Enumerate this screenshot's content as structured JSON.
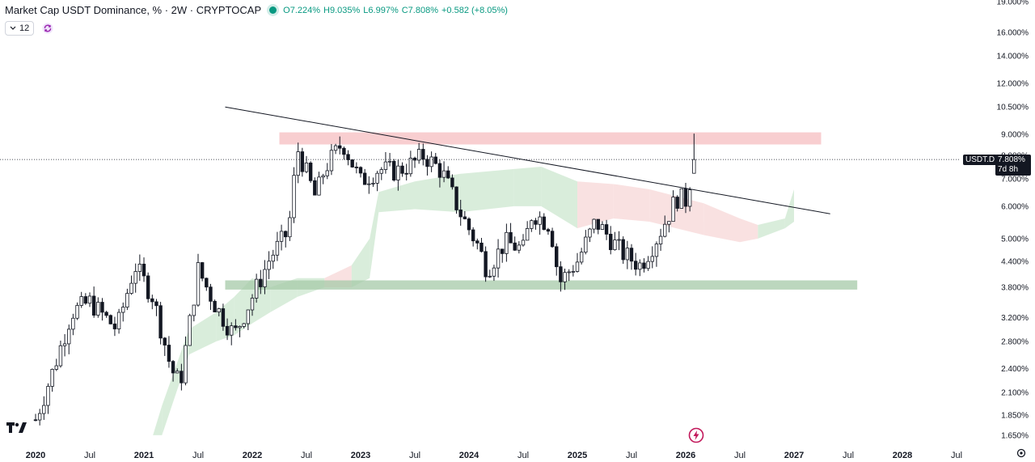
{
  "header": {
    "title": "Market Cap USDT Dominance, % · 2W · CRYPTOCAP",
    "open": "O7.224%",
    "high": "H9.035%",
    "low": "L6.997%",
    "close": "C7.808%",
    "change": "+0.582 (+8.05%)",
    "interval_value": "12"
  },
  "badge": {
    "symbol": "USDT.D",
    "price": "7.808%",
    "countdown": "7d 8h"
  },
  "colors": {
    "up": "#089981",
    "down": "#131722",
    "resistance_zone": "#f7c5c8",
    "support_zone": "#a5c9a8",
    "cloud_bull": "#cfe9d2",
    "cloud_bear": "#f7d9d9"
  },
  "icons": {
    "interval": "chevron-down-icon",
    "sync": "sync-icon",
    "logo": "tradingview-logo-icon",
    "event": "lightning-icon",
    "settings": "gear-icon"
  },
  "chart_data": {
    "type": "candlestick",
    "title": "Market Cap USDT Dominance, % · 2W · CRYPTOCAP",
    "y_scale": "log",
    "y_ticks": [
      "19.000%",
      "16.000%",
      "14.000%",
      "12.000%",
      "10.500%",
      "9.000%",
      "8.000%",
      "7.000%",
      "6.000%",
      "5.000%",
      "4.400%",
      "3.800%",
      "3.200%",
      "2.800%",
      "2.400%",
      "2.100%",
      "1.850%",
      "1.650%"
    ],
    "y_tick_values": [
      19,
      16,
      14,
      12,
      10.5,
      9,
      8,
      7,
      6,
      5,
      4.4,
      3.8,
      3.2,
      2.8,
      2.4,
      2.1,
      1.85,
      1.65
    ],
    "x_ticks": [
      "2020",
      "Jul",
      "2021",
      "Jul",
      "2022",
      "Jul",
      "2023",
      "Jul",
      "2024",
      "Jul",
      "2025",
      "Jul",
      "2026",
      "Jul",
      "2027",
      "Jul",
      "2028",
      "Jul"
    ],
    "x_bold": [
      "2020",
      "2021",
      "2022",
      "2023",
      "2024",
      "2025",
      "2026",
      "2027",
      "2028"
    ],
    "last_price": 7.808,
    "zones": [
      {
        "name": "resistance",
        "from": "2022-04",
        "to": "2027-04",
        "low": 8.5,
        "high": 9.1
      },
      {
        "name": "support",
        "from": "2021-10",
        "to": "2027-08",
        "low": 3.75,
        "high": 3.95
      }
    ],
    "trendline": {
      "from": {
        "date": "2021-10",
        "value": 10.5
      },
      "to": {
        "date": "2027-05",
        "value": 5.75
      }
    },
    "anchors": [
      {
        "date": "2020-01",
        "value": 1.8
      },
      {
        "date": "2020-03",
        "value": 2.4
      },
      {
        "date": "2020-05",
        "value": 3.3
      },
      {
        "date": "2020-07",
        "value": 3.5
      },
      {
        "date": "2020-10",
        "value": 3.0
      },
      {
        "date": "2020-12",
        "value": 4.3
      },
      {
        "date": "2021-02",
        "value": 3.6
      },
      {
        "date": "2021-04",
        "value": 2.4
      },
      {
        "date": "2021-05",
        "value": 2.2
      },
      {
        "date": "2021-07",
        "value": 4.2
      },
      {
        "date": "2021-09",
        "value": 3.4
      },
      {
        "date": "2021-11",
        "value": 2.9
      },
      {
        "date": "2022-01",
        "value": 3.6
      },
      {
        "date": "2022-03",
        "value": 4.5
      },
      {
        "date": "2022-05",
        "value": 5.2
      },
      {
        "date": "2022-06",
        "value": 8.3
      },
      {
        "date": "2022-08",
        "value": 6.3
      },
      {
        "date": "2022-09",
        "value": 7.4
      },
      {
        "date": "2022-11",
        "value": 8.6
      },
      {
        "date": "2023-01",
        "value": 6.9
      },
      {
        "date": "2023-03",
        "value": 7.4
      },
      {
        "date": "2023-05",
        "value": 7.3
      },
      {
        "date": "2023-07",
        "value": 7.7
      },
      {
        "date": "2023-08",
        "value": 8.0
      },
      {
        "date": "2023-10",
        "value": 7.3
      },
      {
        "date": "2023-12",
        "value": 5.8
      },
      {
        "date": "2024-02",
        "value": 4.8
      },
      {
        "date": "2024-03",
        "value": 4.2
      },
      {
        "date": "2024-05",
        "value": 4.9
      },
      {
        "date": "2024-07",
        "value": 4.7
      },
      {
        "date": "2024-08",
        "value": 5.8
      },
      {
        "date": "2024-10",
        "value": 5.4
      },
      {
        "date": "2024-11",
        "value": 3.9
      },
      {
        "date": "2025-01",
        "value": 4.4
      },
      {
        "date": "2025-03",
        "value": 5.5
      },
      {
        "date": "2025-04",
        "value": 5.2
      },
      {
        "date": "2025-06",
        "value": 4.6
      },
      {
        "date": "2025-08",
        "value": 4.3
      },
      {
        "date": "2025-10",
        "value": 5.1
      },
      {
        "date": "2025-12",
        "value": 6.3
      },
      {
        "date": "2026-01",
        "value": 6.2
      },
      {
        "date": "2026-02",
        "value": 7.808
      }
    ],
    "cloud": [
      {
        "date": "2021-02",
        "low": 1.65,
        "high": 1.65,
        "bull": true
      },
      {
        "date": "2021-03",
        "low": 1.65,
        "high": 1.95,
        "bull": true
      },
      {
        "date": "2021-06",
        "low": 2.6,
        "high": 3.0,
        "bull": true
      },
      {
        "date": "2021-09",
        "low": 2.8,
        "high": 3.3,
        "bull": true
      },
      {
        "date": "2021-11",
        "low": 2.9,
        "high": 3.6,
        "bull": true
      },
      {
        "date": "2022-01",
        "low": 3.1,
        "high": 4.0,
        "bull": true
      },
      {
        "date": "2022-03",
        "low": 3.3,
        "high": 3.8,
        "bull": true
      },
      {
        "date": "2022-06",
        "low": 3.6,
        "high": 4.0,
        "bull": true
      },
      {
        "date": "2022-09",
        "low": 3.8,
        "high": 4.0,
        "bull": false
      },
      {
        "date": "2022-12",
        "low": 3.8,
        "high": 4.3,
        "bull": true
      },
      {
        "date": "2023-02",
        "low": 4.0,
        "high": 5.0,
        "bull": true
      },
      {
        "date": "2023-03",
        "low": 5.8,
        "high": 6.5,
        "bull": true
      },
      {
        "date": "2023-07",
        "low": 5.9,
        "high": 6.9,
        "bull": true
      },
      {
        "date": "2023-12",
        "low": 5.8,
        "high": 7.2,
        "bull": true
      },
      {
        "date": "2024-06",
        "low": 6.0,
        "high": 7.4,
        "bull": true
      },
      {
        "date": "2024-09",
        "low": 6.0,
        "high": 7.5,
        "bull": true
      },
      {
        "date": "2025-01",
        "low": 5.3,
        "high": 6.9,
        "bull": false
      },
      {
        "date": "2025-05",
        "low": 5.6,
        "high": 6.8,
        "bull": false
      },
      {
        "date": "2025-09",
        "low": 5.5,
        "high": 6.6,
        "bull": false
      },
      {
        "date": "2026-03",
        "low": 5.1,
        "high": 6.1,
        "bull": false
      },
      {
        "date": "2026-07",
        "low": 4.9,
        "high": 5.6,
        "bull": false
      },
      {
        "date": "2026-09",
        "low": 5.0,
        "high": 5.4,
        "bull": true
      },
      {
        "date": "2026-12",
        "low": 5.3,
        "high": 5.6,
        "bull": true
      },
      {
        "date": "2027-01",
        "low": 5.5,
        "high": 6.6,
        "bull": true
      }
    ]
  }
}
